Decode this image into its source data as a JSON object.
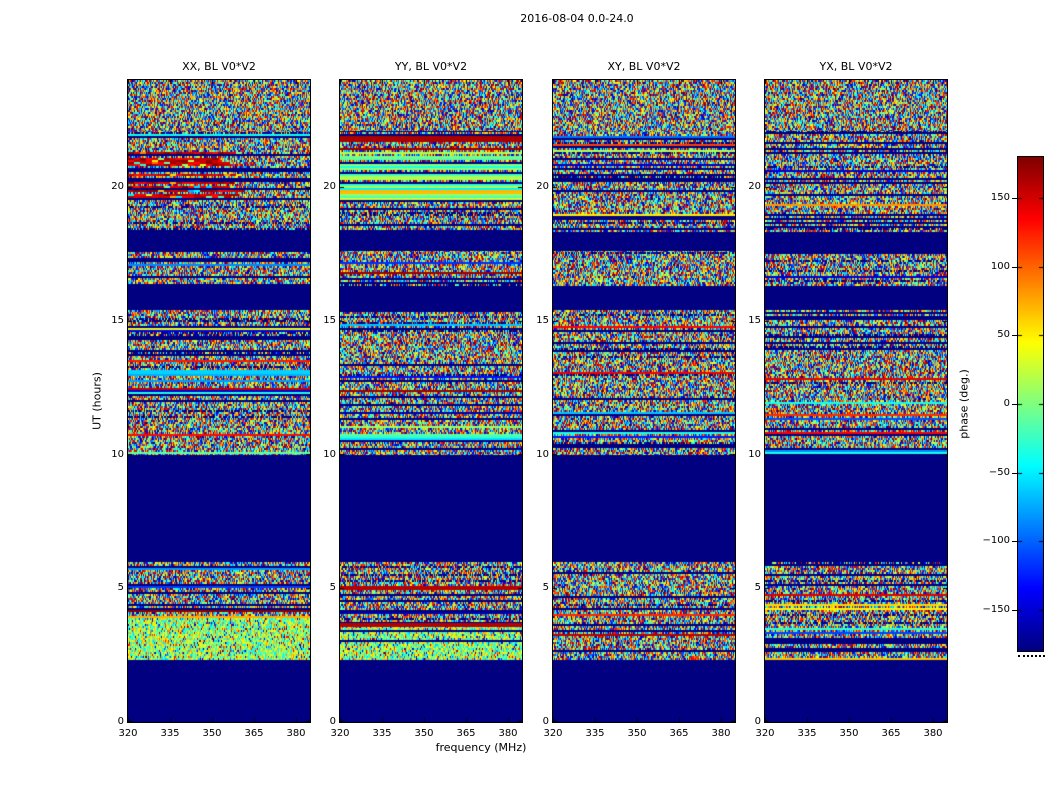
{
  "chart_data": {
    "type": "heatmap",
    "title": "2016-08-04 0.0-24.0",
    "xlabel": "frequency (MHz)",
    "ylabel": "UT (hours)",
    "colormap": "jet",
    "no_data_color": "#000080",
    "x_axis": {
      "range_mhz": [
        320,
        385
      ],
      "ticks": [
        320,
        335,
        350,
        365,
        380
      ],
      "tick_labels": [
        "320",
        "335",
        "350",
        "365",
        "380"
      ]
    },
    "y_axis": {
      "range_hours": [
        0,
        24
      ],
      "ticks": [
        0,
        5,
        10,
        15,
        20
      ],
      "tick_labels": [
        "0",
        "5",
        "10",
        "15",
        "20"
      ]
    },
    "colorbar": {
      "label": "phase (deg.)",
      "min": -180,
      "max": 180,
      "ticks": [
        150,
        100,
        50,
        0,
        -50,
        -100,
        -150
      ],
      "tick_labels": [
        "150",
        "100",
        "50",
        "0",
        "−50",
        "−100",
        "−150"
      ]
    },
    "band_styles": {
      "noise": "dense random phase noise over full -180..180 range",
      "striped": "noise interleaved with flagged (dark blue) and single-phase rows",
      "blank": "no data / flagged region, uniform dark blue",
      "hotblock": "rows with solid red/dark-red (~+150..180 deg) left portion and noisy right portion",
      "coollines": "solid cyan/green (~-60..0 deg) full-width rows with occasional flagged rows",
      "greenish": "noise biased toward -60..+60 deg (green/cyan/yellow)",
      "solid": "single uniform phase value row(s)"
    },
    "panels": [
      {
        "title": "XX, BL V0*V2",
        "bands": [
          {
            "t0": 22.1,
            "t1": 24.0,
            "style": "noise"
          },
          {
            "t0": 21.3,
            "t1": 22.1,
            "style": "striped"
          },
          {
            "t0": 19.6,
            "t1": 21.3,
            "style": "hotblock"
          },
          {
            "t0": 18.3,
            "t1": 19.6,
            "style": "striped"
          },
          {
            "t0": 17.6,
            "t1": 18.3,
            "style": "blank"
          },
          {
            "t0": 16.3,
            "t1": 17.6,
            "style": "striped"
          },
          {
            "t0": 15.4,
            "t1": 16.3,
            "style": "blank"
          },
          {
            "t0": 13.15,
            "t1": 15.4,
            "style": "striped"
          },
          {
            "t0": 13.0,
            "t1": 13.15,
            "style": "solid",
            "phase_deg": -60
          },
          {
            "t0": 10.0,
            "t1": 13.0,
            "style": "striped"
          },
          {
            "t0": 6.0,
            "t1": 10.0,
            "style": "blank"
          },
          {
            "t0": 3.9,
            "t1": 6.0,
            "style": "striped"
          },
          {
            "t0": 2.3,
            "t1": 3.9,
            "style": "greenish"
          },
          {
            "t0": 0.0,
            "t1": 2.3,
            "style": "blank"
          }
        ]
      },
      {
        "title": "YY, BL V0*V2",
        "bands": [
          {
            "t0": 22.1,
            "t1": 24.0,
            "style": "noise"
          },
          {
            "t0": 21.9,
            "t1": 22.1,
            "style": "striped"
          },
          {
            "t0": 21.7,
            "t1": 21.9,
            "style": "solid",
            "phase_deg": 165
          },
          {
            "t0": 21.3,
            "t1": 21.7,
            "style": "striped"
          },
          {
            "t0": 19.6,
            "t1": 21.3,
            "style": "coollines"
          },
          {
            "t0": 18.3,
            "t1": 19.6,
            "style": "striped"
          },
          {
            "t0": 17.6,
            "t1": 18.3,
            "style": "blank"
          },
          {
            "t0": 16.3,
            "t1": 17.6,
            "style": "striped"
          },
          {
            "t0": 15.4,
            "t1": 16.3,
            "style": "blank"
          },
          {
            "t0": 10.0,
            "t1": 15.4,
            "style": "striped"
          },
          {
            "t0": 6.0,
            "t1": 10.0,
            "style": "blank"
          },
          {
            "t0": 5.1,
            "t1": 6.0,
            "style": "striped"
          },
          {
            "t0": 4.95,
            "t1": 5.1,
            "style": "solid",
            "phase_deg": 160
          },
          {
            "t0": 3.7,
            "t1": 4.95,
            "style": "striped"
          },
          {
            "t0": 3.55,
            "t1": 3.7,
            "style": "solid",
            "phase_deg": 160
          },
          {
            "t0": 2.3,
            "t1": 3.55,
            "style": "greenish"
          },
          {
            "t0": 0.0,
            "t1": 2.3,
            "style": "blank"
          }
        ]
      },
      {
        "title": "XY, BL V0*V2",
        "bands": [
          {
            "t0": 22.1,
            "t1": 24.0,
            "style": "noise"
          },
          {
            "t0": 21.3,
            "t1": 22.1,
            "style": "striped"
          },
          {
            "t0": 19.6,
            "t1": 21.3,
            "style": "striped"
          },
          {
            "t0": 18.3,
            "t1": 19.6,
            "style": "striped"
          },
          {
            "t0": 17.6,
            "t1": 18.3,
            "style": "blank"
          },
          {
            "t0": 16.3,
            "t1": 17.6,
            "style": "striped"
          },
          {
            "t0": 15.4,
            "t1": 16.3,
            "style": "blank"
          },
          {
            "t0": 10.0,
            "t1": 15.4,
            "style": "striped"
          },
          {
            "t0": 6.0,
            "t1": 10.0,
            "style": "blank"
          },
          {
            "t0": 2.3,
            "t1": 6.0,
            "style": "striped"
          },
          {
            "t0": 0.0,
            "t1": 2.3,
            "style": "blank"
          }
        ]
      },
      {
        "title": "YX, BL V0*V2",
        "bands": [
          {
            "t0": 22.1,
            "t1": 24.0,
            "style": "noise"
          },
          {
            "t0": 21.3,
            "t1": 22.1,
            "style": "striped"
          },
          {
            "t0": 19.6,
            "t1": 21.3,
            "style": "striped"
          },
          {
            "t0": 18.3,
            "t1": 19.6,
            "style": "striped"
          },
          {
            "t0": 17.6,
            "t1": 18.3,
            "style": "blank"
          },
          {
            "t0": 16.3,
            "t1": 17.6,
            "style": "striped"
          },
          {
            "t0": 15.4,
            "t1": 16.3,
            "style": "blank"
          },
          {
            "t0": 10.0,
            "t1": 15.4,
            "style": "striped"
          },
          {
            "t0": 6.0,
            "t1": 10.0,
            "style": "blank"
          },
          {
            "t0": 2.3,
            "t1": 6.0,
            "style": "striped"
          },
          {
            "t0": 0.0,
            "t1": 2.3,
            "style": "blank"
          }
        ]
      }
    ]
  }
}
